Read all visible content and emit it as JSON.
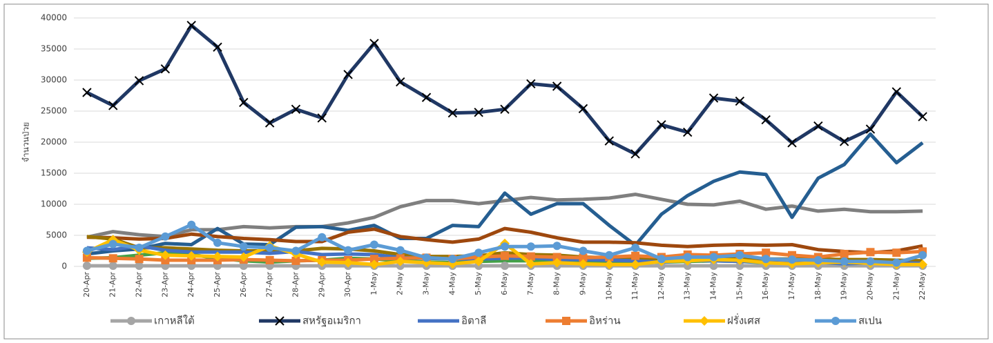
{
  "chart_data": {
    "type": "line",
    "y_label": "จำนวนป่วย",
    "categories": [
      "20-Apr",
      "21-Apr",
      "22-Apr",
      "23-Apr",
      "24-Apr",
      "25-Apr",
      "26-Apr",
      "27-Apr",
      "28-Apr",
      "29-Apr",
      "30-Apr",
      "1-May",
      "2-May",
      "3-May",
      "4-May",
      "5-May",
      "6-May",
      "7-May",
      "8-May",
      "9-May",
      "10-May",
      "11-May",
      "12-May",
      "13-May",
      "14-May",
      "15-May",
      "16-May",
      "17-May",
      "18-May",
      "19-May",
      "20-May",
      "21-May",
      "22-May"
    ],
    "ylim": [
      0,
      40000
    ],
    "yticks": [
      0,
      5000,
      10000,
      15000,
      20000,
      25000,
      30000,
      35000,
      40000
    ],
    "grid": true,
    "series": [
      {
        "color": "#7f7f7f",
        "values": [
          4700,
          5600,
          5100,
          4800,
          5900,
          5900,
          6400,
          6200,
          6400,
          6400,
          7000,
          7900,
          9600,
          10600,
          10600,
          10100,
          10600,
          11100,
          10700,
          10800,
          11000,
          11600,
          10800,
          10000,
          9900,
          10500,
          9200,
          9700,
          8900,
          9200,
          8800,
          8800,
          8900
        ]
      },
      {
        "color": "#255e91",
        "values": [
          2000,
          2500,
          2800,
          3700,
          3500,
          6100,
          3600,
          3500,
          6300,
          6400,
          5800,
          6600,
          4500,
          4500,
          6600,
          6400,
          11800,
          8400,
          10100,
          10100,
          6600,
          3400,
          8400,
          11400,
          13700,
          15200,
          14800,
          7900,
          14200,
          16400,
          21300,
          16700,
          19900
        ]
      },
      {
        "color": "#9e480e",
        "values": [
          4700,
          4600,
          4400,
          4500,
          5200,
          4800,
          4500,
          4300,
          4000,
          4000,
          5500,
          6000,
          4800,
          4300,
          3900,
          4400,
          6100,
          5500,
          4600,
          3900,
          3900,
          3800,
          3400,
          3200,
          3400,
          3500,
          3400,
          3500,
          2700,
          2400,
          2200,
          2500,
          3300
        ]
      },
      {
        "color": "#997300",
        "values": [
          4800,
          4400,
          3000,
          3000,
          2800,
          2600,
          2500,
          2500,
          2500,
          2900,
          2800,
          2500,
          1900,
          1600,
          1600,
          1700,
          2200,
          1900,
          1800,
          1500,
          1400,
          1300,
          1100,
          1400,
          1300,
          1400,
          1200,
          1200,
          1200,
          1100,
          1100,
          1000,
          900
        ]
      },
      {
        "color": "#43a047",
        "values": [
          1300,
          1400,
          1800,
          2200,
          1900,
          1300,
          900,
          700,
          900,
          1000,
          1300,
          1200,
          900,
          700,
          600,
          800,
          900,
          900,
          1000,
          800,
          600,
          600,
          700,
          800,
          900,
          800,
          600,
          500,
          300,
          200,
          200,
          200,
          300
        ]
      },
      {
        "name": "เกาหลีใต้",
        "color": "#a5a5a5",
        "marker": "circle",
        "values": [
          100,
          100,
          100,
          100,
          100,
          100,
          100,
          100,
          100,
          100,
          100,
          100,
          100,
          100,
          100,
          100,
          100,
          100,
          100,
          100,
          100,
          100,
          100,
          100,
          100,
          100,
          100,
          100,
          100,
          100,
          100,
          100,
          100
        ]
      },
      {
        "name": "สหรัฐอเมริกา",
        "color": "#203864",
        "marker": "x",
        "values": [
          28000,
          25900,
          29900,
          31800,
          38800,
          35300,
          26400,
          23100,
          25300,
          23900,
          30900,
          35900,
          29700,
          27200,
          24700,
          24800,
          25300,
          29400,
          29000,
          25400,
          20200,
          18100,
          22800,
          21600,
          27100,
          26600,
          23600,
          19900,
          22600,
          20100,
          22100,
          28100,
          24100
        ]
      },
      {
        "name": "อิตาลี",
        "color": "#4472c4",
        "values": [
          3000,
          2700,
          3300,
          2600,
          2300,
          2300,
          2300,
          2100,
          2400,
          1900,
          2000,
          1900,
          1400,
          1300,
          1200,
          1200,
          1300,
          1400,
          1100,
          1100,
          1000,
          900,
          700,
          1000,
          900,
          800,
          700,
          500,
          700,
          400,
          600,
          600,
          500
        ]
      },
      {
        "name": "อิหร่าน",
        "color": "#ed7d31",
        "marker": "square",
        "values": [
          1400,
          1300,
          1200,
          1000,
          1000,
          1000,
          1100,
          1000,
          900,
          1000,
          1000,
          1200,
          1300,
          1400,
          1200,
          1500,
          1700,
          1600,
          1500,
          1400,
          1500,
          1700,
          1500,
          1900,
          1800,
          2000,
          2200,
          1800,
          1500,
          2000,
          2300,
          2200,
          2400
        ]
      },
      {
        "name": "ฝรั่งเศส",
        "color": "#ffc000",
        "marker": "diamond",
        "values": [
          2300,
          4300,
          2600,
          1800,
          1700,
          1600,
          1500,
          3300,
          2000,
          700,
          600,
          300,
          800,
          600,
          400,
          800,
          3700,
          400,
          600,
          400,
          300,
          300,
          800,
          900,
          1100,
          1000,
          600,
          400,
          600,
          700,
          500,
          300,
          300
        ]
      },
      {
        "name": "สเปน",
        "color": "#5b9bd5",
        "marker": "circle",
        "values": [
          2500,
          3600,
          3000,
          4800,
          6700,
          3800,
          3200,
          3000,
          2500,
          4700,
          2600,
          3500,
          2600,
          1400,
          1200,
          2200,
          3200,
          3200,
          3300,
          2500,
          1800,
          3000,
          1200,
          1500,
          1500,
          1800,
          1200,
          1100,
          1000,
          800,
          800,
          600,
          1800
        ]
      }
    ]
  }
}
